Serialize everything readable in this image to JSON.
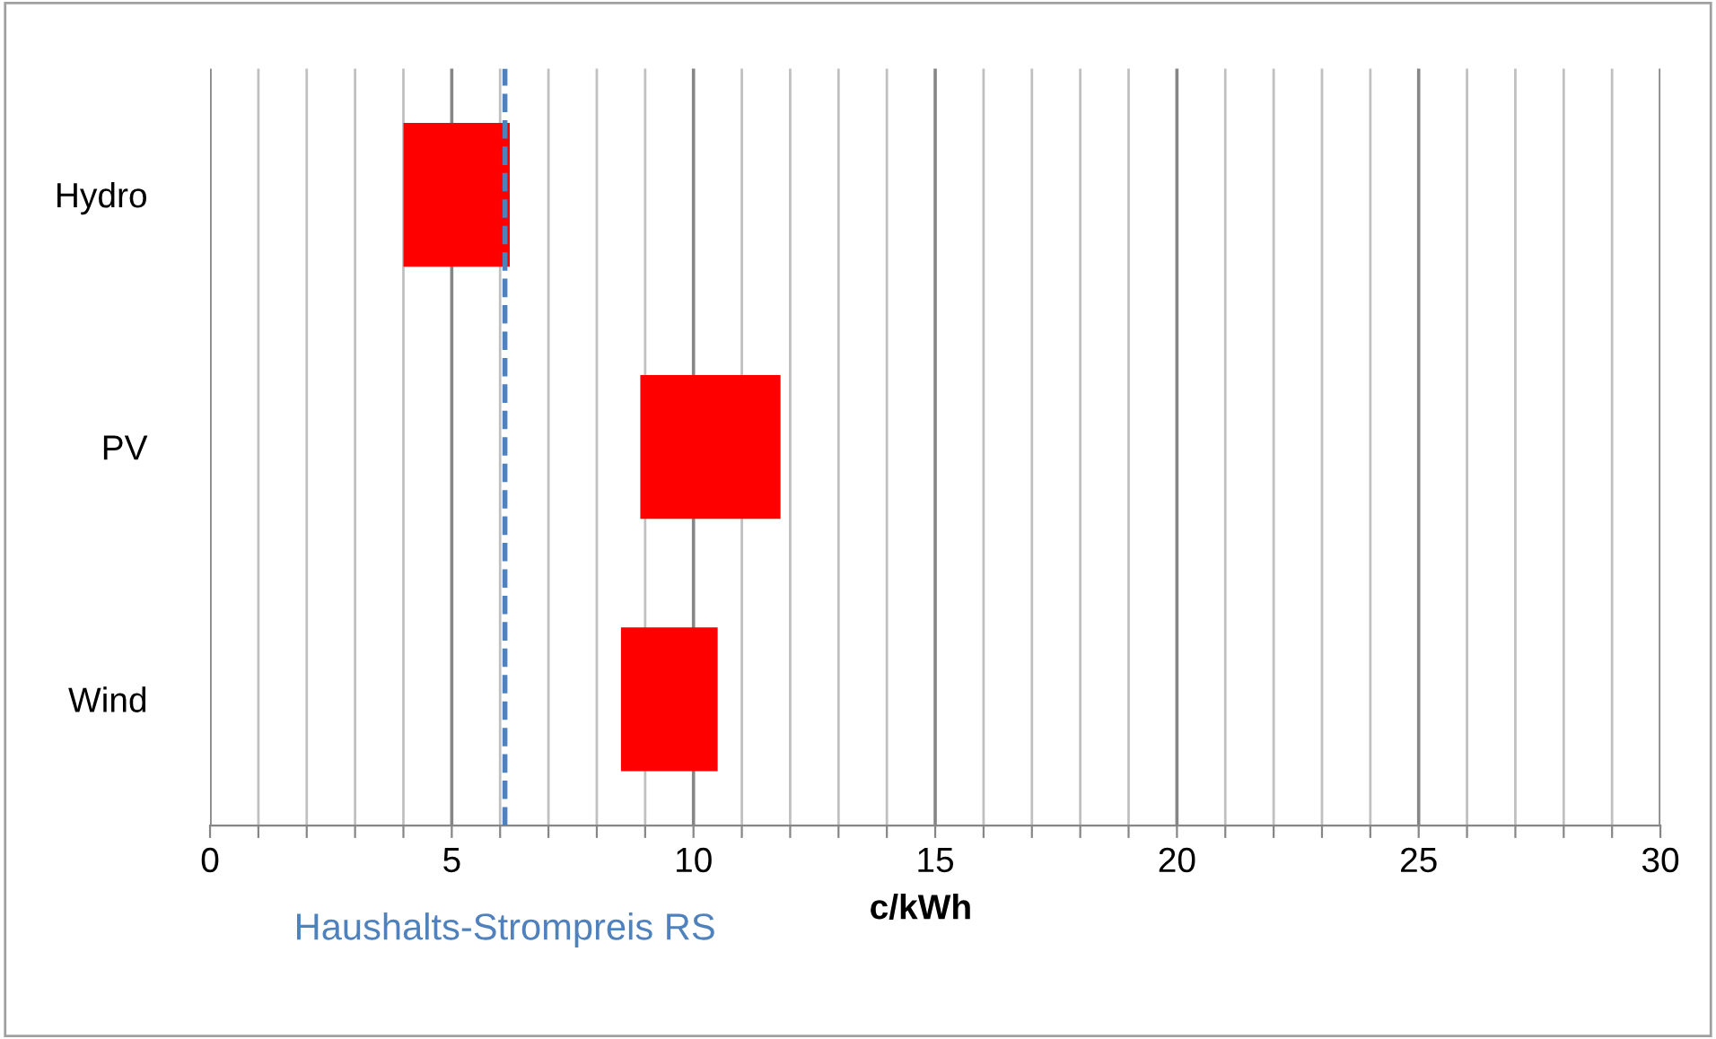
{
  "chart_data": {
    "type": "bar",
    "orientation": "horizontal",
    "xlabel": "c/kWh",
    "categories": [
      "Hydro",
      "PV",
      "Wind"
    ],
    "base": [
      4,
      8.9,
      8.5
    ],
    "values": [
      2.2,
      2.9,
      2.0
    ],
    "color": "#ff0000",
    "xlim": [
      0,
      30
    ],
    "xticks": [
      0,
      {
        "value": 1,
        "label": null
      },
      {
        "value": 2,
        "label": null
      },
      {
        "value": 3,
        "label": null
      },
      {
        "value": 4,
        "label": null
      },
      5,
      {
        "value": 6,
        "label": null
      },
      {
        "value": 7,
        "label": null
      },
      {
        "value": 8,
        "label": null
      },
      {
        "value": 9,
        "label": null
      },
      10,
      {
        "value": 11,
        "label": null
      },
      {
        "value": 12,
        "label": null
      },
      {
        "value": 13,
        "label": null
      },
      {
        "value": 14,
        "label": null
      },
      15,
      {
        "value": 16,
        "label": null
      },
      {
        "value": 17,
        "label": null
      },
      {
        "value": 18,
        "label": null
      },
      {
        "value": 19,
        "label": null
      },
      20,
      {
        "value": 21,
        "label": null
      },
      {
        "value": 22,
        "label": null
      },
      {
        "value": 23,
        "label": null
      },
      {
        "value": 24,
        "label": null
      },
      25,
      {
        "value": 26,
        "label": null
      },
      {
        "value": 27,
        "label": null
      },
      {
        "value": 28,
        "label": null
      },
      {
        "value": 29,
        "label": null
      },
      30
    ],
    "grid": "x",
    "ref_lines": [
      {
        "axis": "x",
        "value": 6.1,
        "label": "Haushalts-Strompreis RS",
        "color": "#4f81bd",
        "line_style": "dashed"
      }
    ]
  }
}
